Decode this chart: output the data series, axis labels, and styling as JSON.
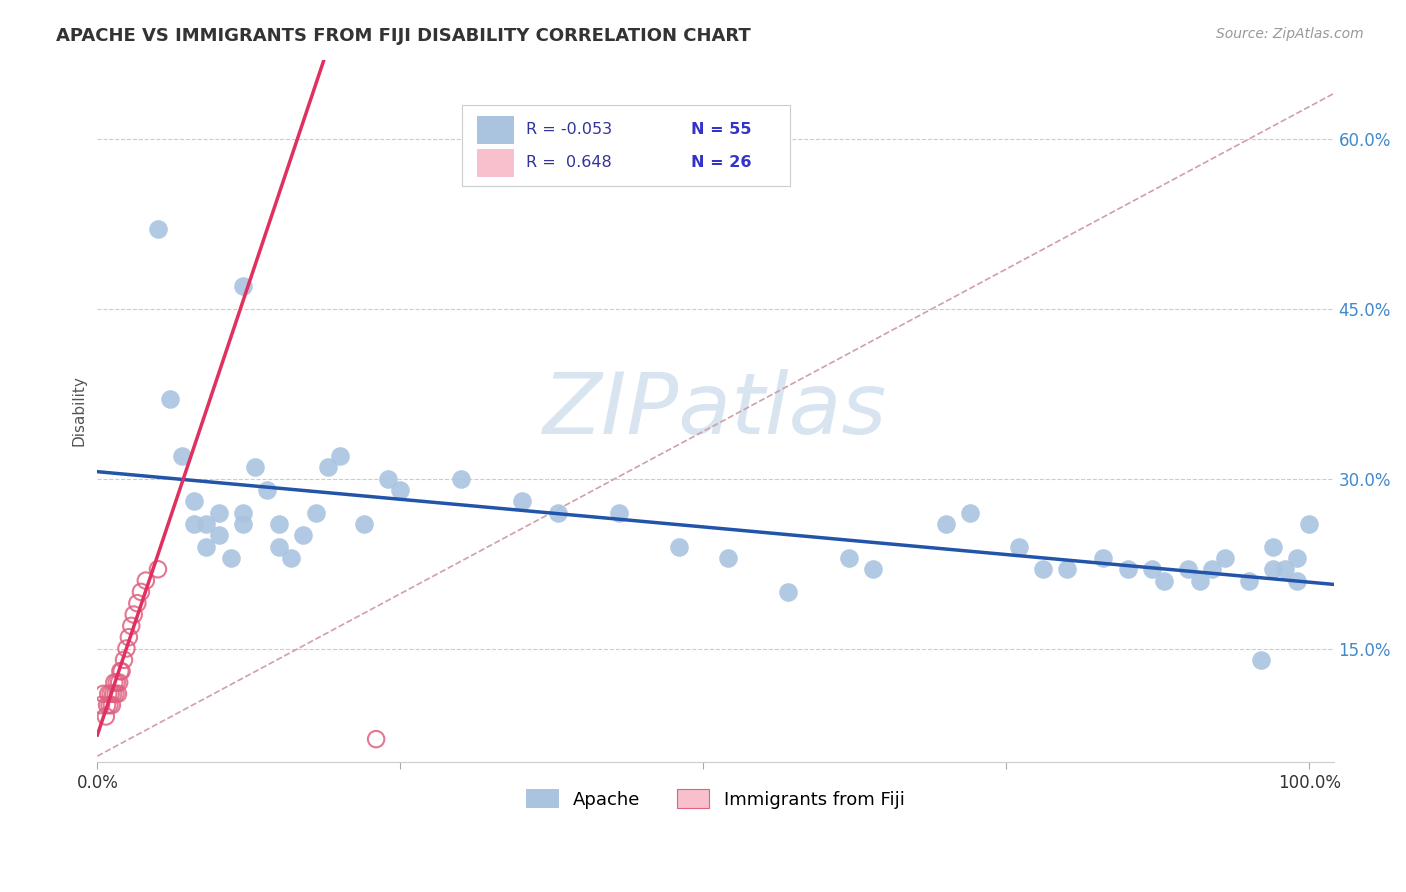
{
  "title": "APACHE VS IMMIGRANTS FROM FIJI DISABILITY CORRELATION CHART",
  "source": "Source: ZipAtlas.com",
  "ylabel": "Disability",
  "apache_R": -0.053,
  "apache_N": 55,
  "fiji_R": 0.648,
  "fiji_N": 26,
  "apache_color": "#aac4e0",
  "apache_edge_color": "#aac4e0",
  "apache_line_color": "#2255aa",
  "fiji_color": "none",
  "fiji_edge_color": "#e06080",
  "fiji_line_color": "#e03060",
  "trend_line_color": "#d0a0a8",
  "grid_color": "#cccccc",
  "watermark_color": "#d8e4f0",
  "right_tick_color": "#4488cc",
  "title_color": "#333333",
  "source_color": "#999999",
  "apache_x": [
    0.05,
    0.12,
    0.06,
    0.07,
    0.08,
    0.08,
    0.09,
    0.09,
    0.1,
    0.1,
    0.11,
    0.12,
    0.12,
    0.13,
    0.14,
    0.15,
    0.15,
    0.16,
    0.17,
    0.18,
    0.19,
    0.2,
    0.22,
    0.24,
    0.25,
    0.3,
    0.35,
    0.38,
    0.43,
    0.48,
    0.52,
    0.57,
    0.62,
    0.64,
    0.7,
    0.72,
    0.76,
    0.78,
    0.8,
    0.83,
    0.85,
    0.87,
    0.88,
    0.9,
    0.91,
    0.92,
    0.93,
    0.95,
    0.96,
    0.97,
    0.97,
    0.98,
    0.99,
    0.99,
    1.0
  ],
  "apache_y": [
    0.52,
    0.47,
    0.37,
    0.32,
    0.26,
    0.28,
    0.24,
    0.26,
    0.25,
    0.27,
    0.23,
    0.26,
    0.27,
    0.31,
    0.29,
    0.24,
    0.26,
    0.23,
    0.25,
    0.27,
    0.31,
    0.32,
    0.26,
    0.3,
    0.29,
    0.3,
    0.28,
    0.27,
    0.27,
    0.24,
    0.23,
    0.2,
    0.23,
    0.22,
    0.26,
    0.27,
    0.24,
    0.22,
    0.22,
    0.23,
    0.22,
    0.22,
    0.21,
    0.22,
    0.21,
    0.22,
    0.23,
    0.21,
    0.14,
    0.22,
    0.24,
    0.22,
    0.23,
    0.21,
    0.26
  ],
  "fiji_x": [
    0.003,
    0.005,
    0.007,
    0.008,
    0.009,
    0.01,
    0.011,
    0.012,
    0.013,
    0.014,
    0.015,
    0.016,
    0.017,
    0.018,
    0.019,
    0.02,
    0.022,
    0.024,
    0.026,
    0.028,
    0.03,
    0.033,
    0.036,
    0.04,
    0.05,
    0.23
  ],
  "fiji_y": [
    0.1,
    0.11,
    0.09,
    0.1,
    0.11,
    0.1,
    0.11,
    0.1,
    0.11,
    0.12,
    0.11,
    0.12,
    0.11,
    0.12,
    0.13,
    0.13,
    0.14,
    0.15,
    0.16,
    0.17,
    0.18,
    0.19,
    0.2,
    0.21,
    0.22,
    0.07
  ],
  "ylim": [
    0.05,
    0.67
  ],
  "xlim": [
    0.0,
    1.02
  ],
  "ytick_vals": [
    0.15,
    0.3,
    0.45,
    0.6
  ],
  "ytick_labels": [
    "15.0%",
    "30.0%",
    "45.0%",
    "60.0%"
  ],
  "xtick_vals": [
    0.0,
    0.25,
    0.5,
    0.75,
    1.0
  ],
  "xtick_labels": [
    "0.0%",
    "",
    "",
    "",
    "100.0%"
  ]
}
